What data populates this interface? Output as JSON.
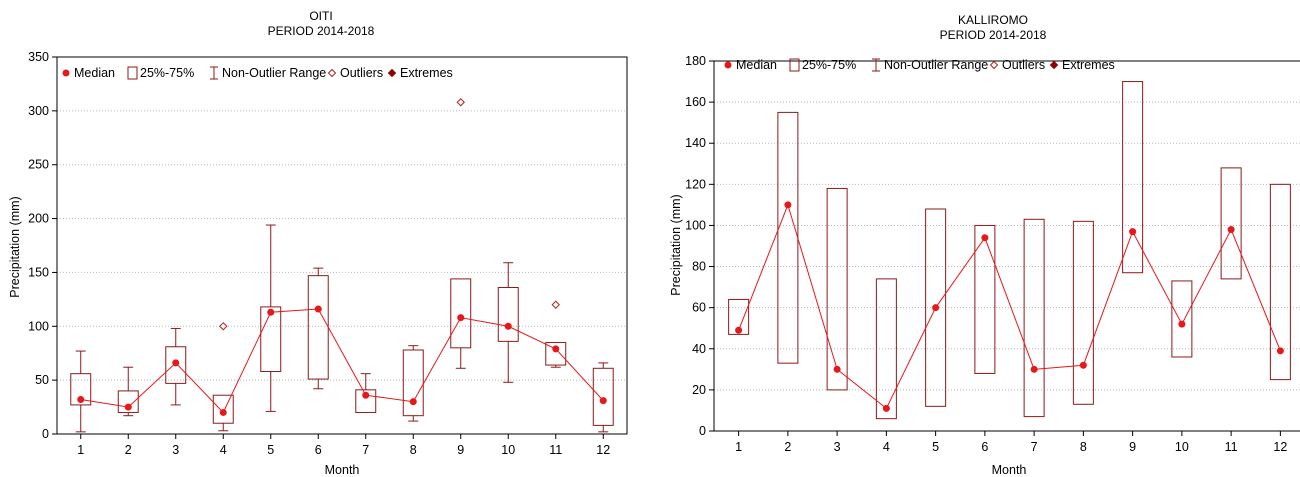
{
  "chart_data": [
    {
      "type": "box",
      "title": "OITI",
      "subtitle": "PERIOD 2014-2018",
      "xlabel": "Month",
      "ylabel": "Precipitation (mm)",
      "ylim": [
        0,
        350
      ],
      "yticks": [
        0,
        50,
        100,
        150,
        200,
        250,
        300,
        350
      ],
      "grid": true,
      "legend": {
        "placement": "top-left",
        "entries": [
          "Median",
          "25%-75%",
          "Non-Outlier Range",
          "Outliers",
          "Extremes"
        ]
      },
      "colors": {
        "series": "#e8171a",
        "box": "#8b1a1a",
        "outlier": "#b22222",
        "extreme": "#8b0000"
      },
      "categories": [
        "1",
        "2",
        "3",
        "4",
        "5",
        "6",
        "7",
        "8",
        "9",
        "10",
        "11",
        "12"
      ],
      "median": [
        32,
        25,
        66,
        20,
        113,
        116,
        36,
        30,
        108,
        100,
        79,
        31
      ],
      "q1": [
        27,
        20,
        47,
        10,
        58,
        51,
        20,
        17,
        80,
        86,
        64,
        8
      ],
      "q3": [
        56,
        40,
        81,
        36,
        118,
        147,
        41,
        78,
        144,
        136,
        85,
        61
      ],
      "whisker_min": [
        2,
        17,
        27,
        3,
        21,
        42,
        20,
        12,
        61,
        48,
        62,
        2
      ],
      "whisker_max": [
        77,
        62,
        98,
        36,
        194,
        154,
        56,
        82,
        144,
        159,
        85,
        66
      ],
      "outliers": [
        [],
        [],
        [],
        [
          100
        ],
        [],
        [],
        [],
        [],
        [
          308
        ],
        [],
        [
          120
        ],
        []
      ],
      "extremes": [
        [],
        [],
        [],
        [],
        [],
        [],
        [],
        [],
        [],
        [],
        [],
        []
      ]
    },
    {
      "type": "box",
      "title": "KALLIROMO",
      "subtitle": "PERIOD 2014-2018",
      "xlabel": "Month",
      "ylabel": "Precipitation (mm)",
      "ylim": [
        0,
        180
      ],
      "yticks": [
        0,
        20,
        40,
        60,
        80,
        100,
        120,
        140,
        160,
        180
      ],
      "grid": true,
      "legend": {
        "placement": "top-left",
        "entries": [
          "Median",
          "25%-75%",
          "Non-Outlier Range",
          "Outliers",
          "Extremes"
        ]
      },
      "colors": {
        "series": "#e8171a",
        "box": "#8b1a1a",
        "outlier": "#b22222",
        "extreme": "#8b0000"
      },
      "categories": [
        "1",
        "2",
        "3",
        "4",
        "5",
        "6",
        "7",
        "8",
        "9",
        "10",
        "11",
        "12"
      ],
      "median": [
        49,
        110,
        30,
        11,
        60,
        94,
        30,
        32,
        97,
        52,
        98,
        39
      ],
      "q1": [
        47,
        33,
        20,
        6,
        12,
        28,
        7,
        13,
        77,
        36,
        74,
        25
      ],
      "q3": [
        64,
        155,
        118,
        74,
        108,
        100,
        103,
        102,
        170,
        73,
        128,
        120
      ],
      "whisker_min": [
        47,
        33,
        20,
        6,
        12,
        28,
        7,
        13,
        77,
        36,
        74,
        25
      ],
      "whisker_max": [
        64,
        155,
        118,
        74,
        108,
        100,
        103,
        102,
        170,
        73,
        128,
        120
      ],
      "outliers": [
        [],
        [],
        [],
        [],
        [],
        [],
        [],
        [],
        [],
        [],
        [],
        []
      ],
      "extremes": [
        [],
        [],
        [],
        [],
        [],
        [],
        [],
        [],
        [],
        [],
        [],
        []
      ]
    }
  ]
}
